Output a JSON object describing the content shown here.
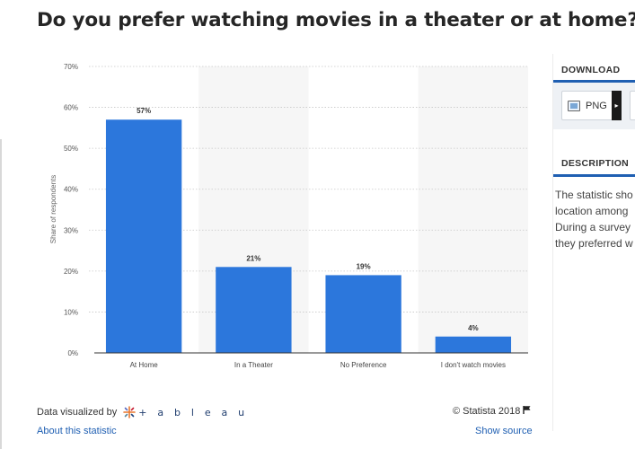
{
  "title": "Do you prefer watching movies in a theater or at home?",
  "chart_data": {
    "type": "bar",
    "categories": [
      "At Home",
      "In a Theater",
      "No Preference",
      "I don't watch movies"
    ],
    "values": [
      57,
      21,
      19,
      4
    ],
    "value_labels": [
      "57%",
      "21%",
      "19%",
      "4%"
    ],
    "ylabel": "Share of respondents",
    "xlabel": "",
    "ylim": [
      0,
      70
    ],
    "yticks": [
      0,
      10,
      20,
      30,
      40,
      50,
      60,
      70
    ],
    "ytick_labels": [
      "0%",
      "10%",
      "20%",
      "30%",
      "40%",
      "50%",
      "60%",
      "70%"
    ],
    "bar_color": "#2c77dc",
    "band_color": "#f6f6f6",
    "grid": true
  },
  "footer": {
    "data_visualized_by": "Data visualized by",
    "tableau": "+ a b l e a u",
    "about": "About this statistic",
    "copyright": "© Statista 2018",
    "show_source": "Show source"
  },
  "panel": {
    "download_title": "DOWNLOAD",
    "png_label": "PNG",
    "description_title": "DESCRIPTION",
    "description_lines": [
      "The statistic sho",
      "location among",
      "During a survey",
      "they preferred w"
    ]
  },
  "colors": {
    "accent": "#1f5fb2",
    "bar": "#2c77dc"
  }
}
